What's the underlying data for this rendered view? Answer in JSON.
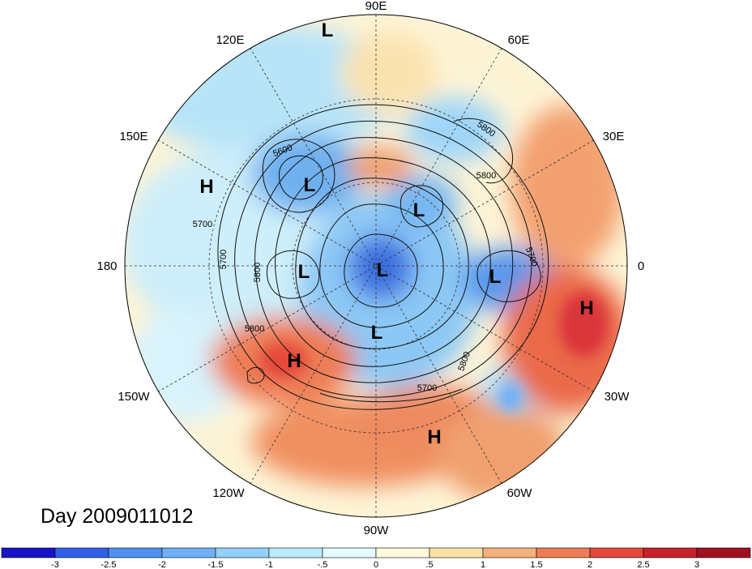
{
  "title": "Day 2009011012",
  "longitude_labels": [
    "90E",
    "60E",
    "30E",
    "0",
    "30W",
    "60W",
    "90W",
    "120W",
    "150W",
    "180",
    "150E",
    "120E"
  ],
  "pressure_systems": [
    {
      "type": "L"
    },
    {
      "type": "L"
    },
    {
      "type": "L"
    },
    {
      "type": "L"
    },
    {
      "type": "L"
    },
    {
      "type": "L"
    },
    {
      "type": "L"
    },
    {
      "type": "H"
    },
    {
      "type": "H"
    },
    {
      "type": "H"
    },
    {
      "type": "H"
    }
  ],
  "contour_labels": [
    "5600",
    "5800",
    "5700",
    "5800",
    "5700",
    "5800",
    "5700",
    "5800",
    "5700",
    "5800"
  ],
  "colorbar": {
    "tick_labels": [
      "-3",
      "-2.5",
      "-2",
      "-1.5",
      "-1",
      "-.5",
      "0",
      ".5",
      "1",
      "1.5",
      "2",
      "2.5",
      "3"
    ],
    "colors": [
      "#1a12c8",
      "#2f5fe6",
      "#4f8ff0",
      "#6fb0f6",
      "#93d0fa",
      "#b9ecff",
      "#e4fbff",
      "#fffbdc",
      "#fbe1a6",
      "#f5b27a",
      "#ee7d55",
      "#e5483a",
      "#c8212a",
      "#a0101e"
    ]
  }
}
